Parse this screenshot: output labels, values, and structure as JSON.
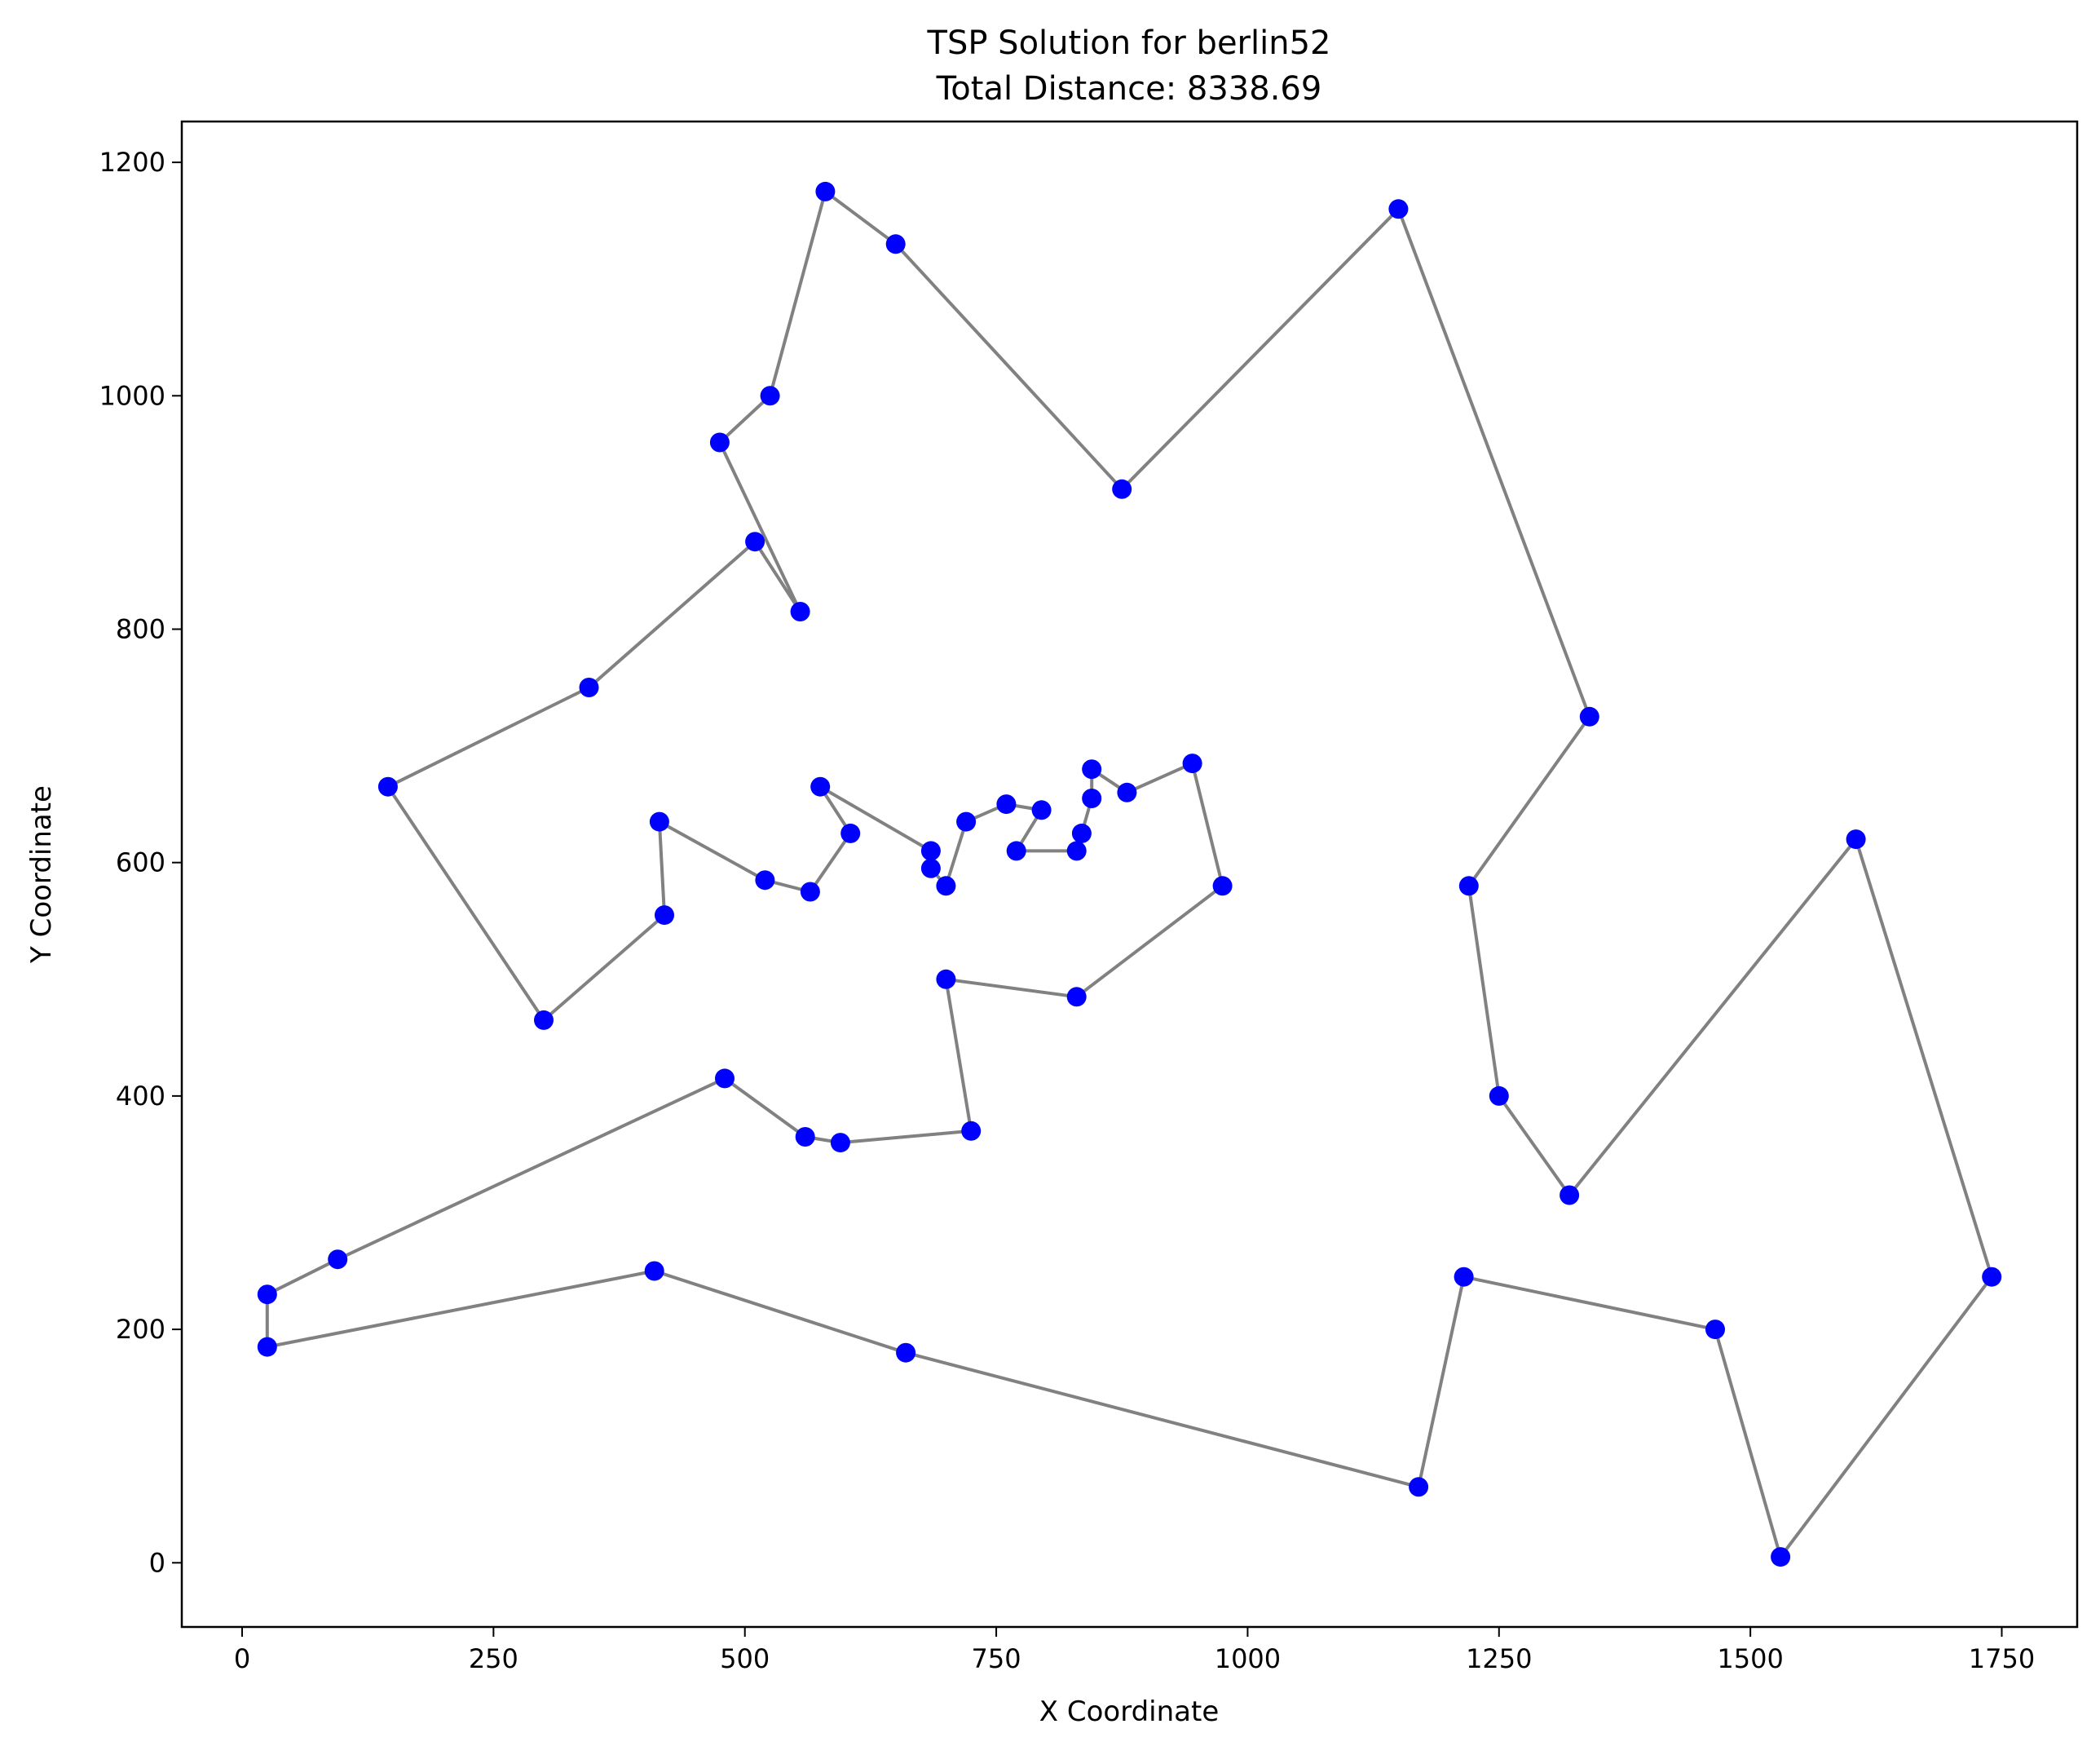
{
  "chart_data": {
    "type": "line",
    "title": "TSP Solution for berlin52",
    "subtitle": "Total Distance: 8338.69",
    "xlabel": "X Coordinate",
    "ylabel": "Y Coordinate",
    "xlim": [
      -60,
      1825
    ],
    "ylim": [
      -55,
      1235
    ],
    "xticks": [
      0,
      250,
      500,
      750,
      1000,
      1250,
      1500,
      1750
    ],
    "yticks": [
      0,
      200,
      400,
      600,
      800,
      1000,
      1200
    ],
    "grid": false,
    "colors": {
      "route": "#333333",
      "city": "#0000ff"
    },
    "series": [
      {
        "x": [
          565,
          605,
          575,
          685,
          685,
          700,
          720,
          760,
          795,
          770,
          830,
          835,
          845,
          845,
          880,
          945,
          975,
          830,
          700,
          725,
          595,
          560,
          480,
          95,
          25,
          25,
          410,
          660,
          1170,
          1215,
          1465,
          1530,
          1740,
          1605,
          1320,
          1250,
          1220,
          1340,
          1150,
          875,
          650,
          580,
          525,
          475,
          555,
          510,
          345,
          145,
          300,
          420,
          415,
          520,
          565
        ],
        "y": [
          575,
          625,
          665,
          610,
          595,
          580,
          635,
          650,
          645,
          610,
          610,
          625,
          655,
          680,
          660,
          685,
          580,
          485,
          500,
          370,
          360,
          365,
          415,
          260,
          230,
          185,
          250,
          180,
          65,
          245,
          200,
          5,
          245,
          620,
          315,
          400,
          580,
          725,
          1160,
          920,
          1130,
          1175,
          1000,
          960,
          815,
          875,
          750,
          665,
          465,
          555,
          635,
          585,
          575
        ]
      }
    ]
  }
}
